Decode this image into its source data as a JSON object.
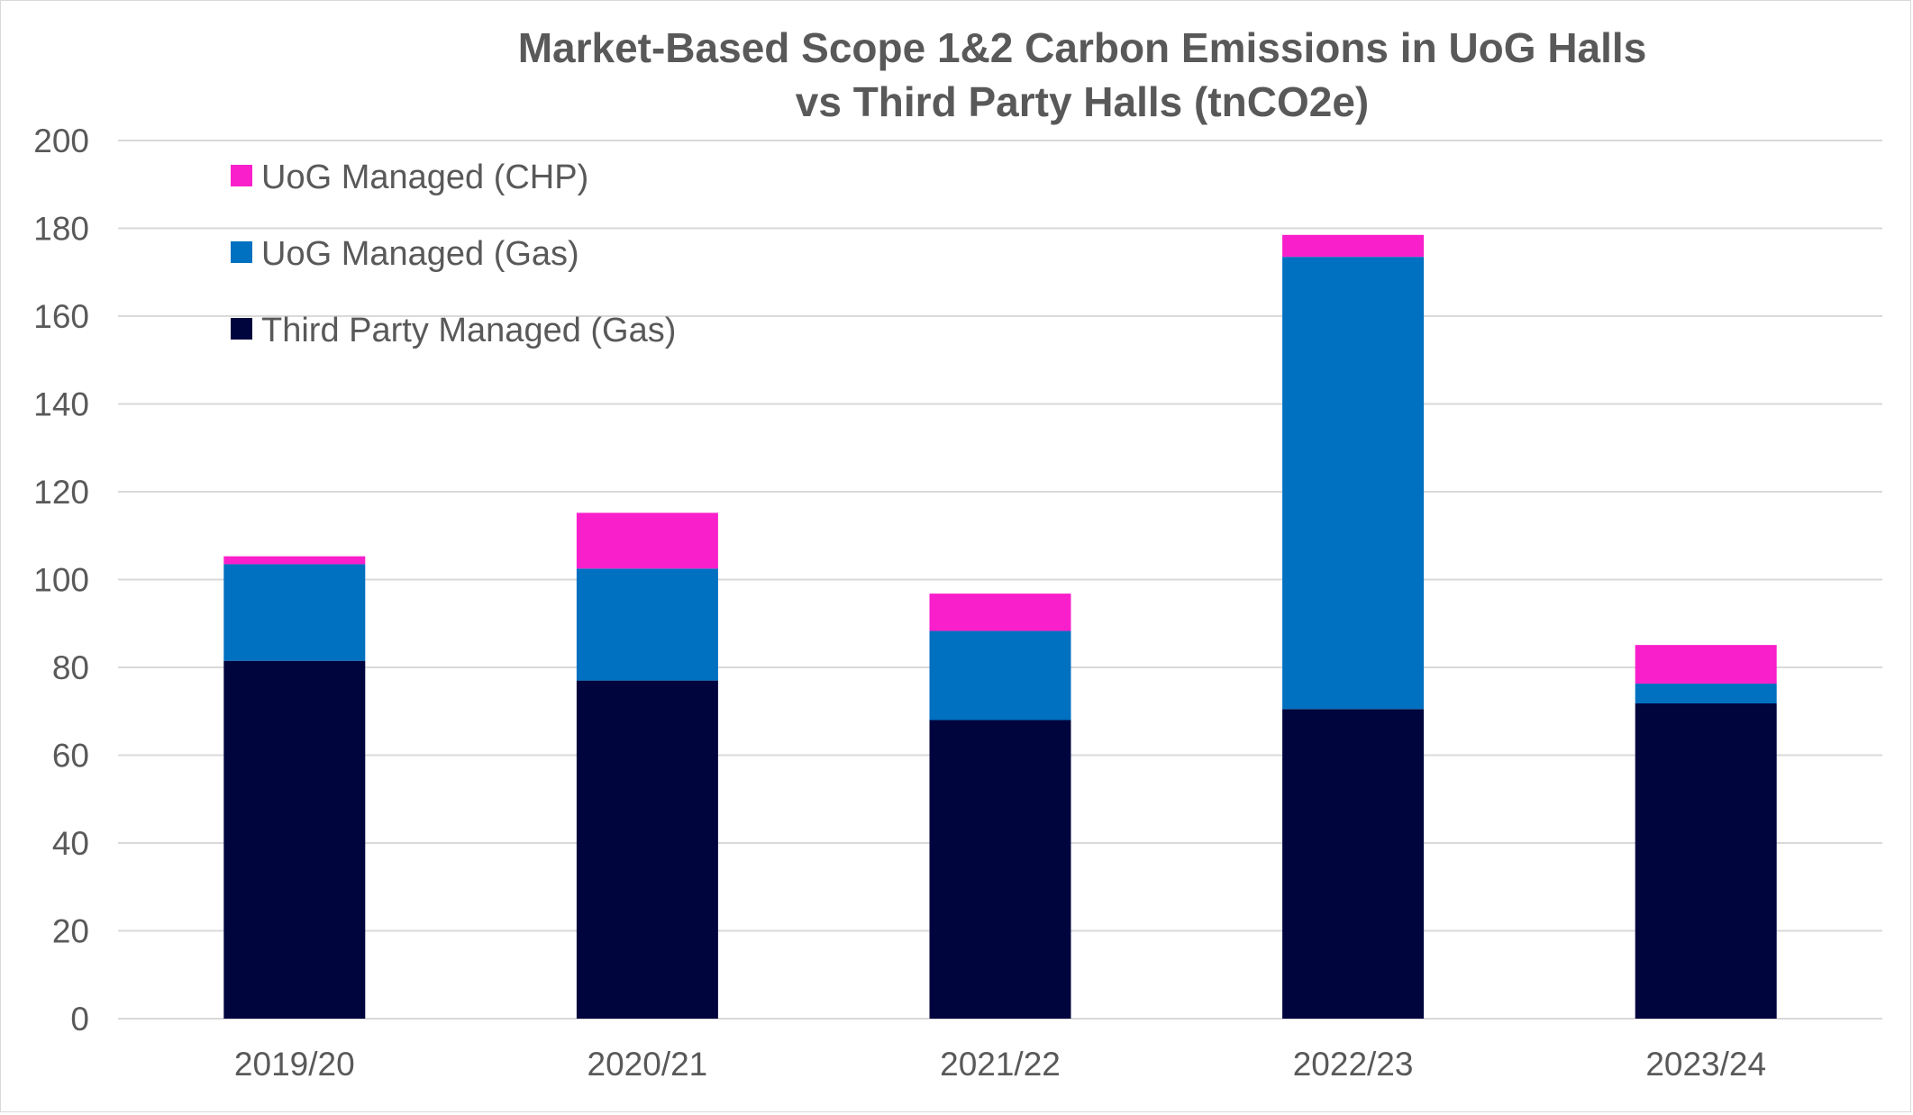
{
  "chart_data": {
    "type": "bar",
    "stacked": true,
    "title_lines": [
      "Market-Based Scope 1&2 Carbon Emissions in UoG Halls",
      "vs Third Party Halls (tnCO2e)"
    ],
    "xlabel": "",
    "ylabel": "",
    "ylim": [
      0,
      200
    ],
    "y_ticks": [
      0,
      20,
      40,
      60,
      80,
      100,
      120,
      140,
      160,
      180,
      200
    ],
    "grid": true,
    "legend_position": "top-left",
    "categories": [
      "2019/20",
      "2020/21",
      "2021/22",
      "2022/23",
      "2023/24"
    ],
    "series": [
      {
        "name": "Third Party Managed (Gas)",
        "color": "#00053e",
        "values": [
          81.5,
          77,
          68,
          70.5,
          71.8
        ]
      },
      {
        "name": "UoG Managed (Gas)",
        "color": "#0070c0",
        "values": [
          22,
          25.5,
          20.3,
          103,
          4.5
        ]
      },
      {
        "name": "UoG Managed (CHP)",
        "color": "#f91fca",
        "values": [
          1.8,
          12.7,
          8.5,
          5,
          8.8
        ]
      }
    ],
    "legend_order": [
      "UoG Managed (CHP)",
      "UoG Managed (Gas)",
      "Third Party Managed (Gas)"
    ]
  }
}
